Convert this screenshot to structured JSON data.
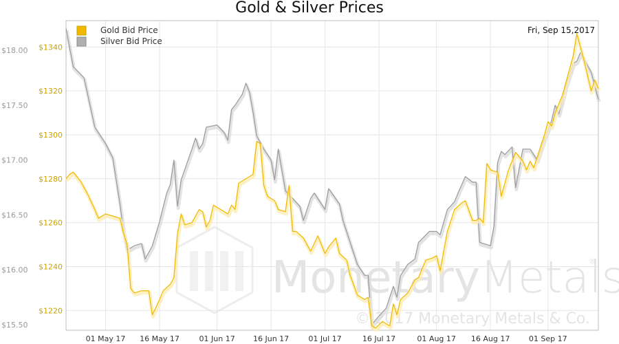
{
  "chart_data": {
    "type": "line",
    "title": "Gold & Silver Prices",
    "date_label": "Fri, Sep 15,2017",
    "watermark": {
      "brand": "MonetaryMetals",
      "brand_part1": "Monetary",
      "brand_part2": "Metals",
      "copyright": "© 2017 Monetary Metals & Co."
    },
    "legend": {
      "placement": "top-left"
    },
    "grid": true,
    "x_ticks": [
      "01 May 17",
      "16 May 17",
      "01 Jun 17",
      "16 Jun 17",
      "01 Jul 17",
      "16 Jul 17",
      "01 Aug 17",
      "16 Aug 17",
      "01 Sep 17"
    ],
    "x_range": [
      "2017-04-20",
      "2017-09-15"
    ],
    "y_left": {
      "label": "",
      "ticks": [
        "$15.50",
        "$16.00",
        "$16.50",
        "$17.00",
        "$17.50",
        "$18.00"
      ],
      "range": [
        15.45,
        18.27
      ]
    },
    "y_right": {
      "label": "",
      "ticks": [
        "$1220",
        "$1240",
        "$1260",
        "$1280",
        "$1300",
        "$1320",
        "$1340"
      ],
      "range": [
        1211,
        1352
      ]
    },
    "series": [
      {
        "name": "Gold Bid Price",
        "axis": "right",
        "color": "#f0b800",
        "points": [
          [
            "2017-04-20",
            1280
          ],
          [
            "2017-04-21",
            1282
          ],
          [
            "2017-04-22",
            1283
          ],
          [
            "2017-04-24",
            1279
          ],
          [
            "2017-04-26",
            1273
          ],
          [
            "2017-04-28",
            1266
          ],
          [
            "2017-04-29",
            1262
          ],
          [
            "2017-05-01",
            1264
          ],
          [
            "2017-05-03",
            1263
          ],
          [
            "2017-05-05",
            1262
          ],
          [
            "2017-05-06",
            1255
          ],
          [
            "2017-05-07",
            1250
          ],
          [
            "2017-05-08",
            1230
          ],
          [
            "2017-05-09",
            1228
          ],
          [
            "2017-05-11",
            1229
          ],
          [
            "2017-05-13",
            1229
          ],
          [
            "2017-05-14",
            1218
          ],
          [
            "2017-05-16",
            1225
          ],
          [
            "2017-05-17",
            1229
          ],
          [
            "2017-05-19",
            1232
          ],
          [
            "2017-05-20",
            1235
          ],
          [
            "2017-05-21",
            1255
          ],
          [
            "2017-05-22",
            1264
          ],
          [
            "2017-05-23",
            1259
          ],
          [
            "2017-05-25",
            1260
          ],
          [
            "2017-05-27",
            1266
          ],
          [
            "2017-05-28",
            1265
          ],
          [
            "2017-05-29",
            1258
          ],
          [
            "2017-05-30",
            1261
          ],
          [
            "2017-05-31",
            1268
          ],
          [
            "2017-06-02",
            1266
          ],
          [
            "2017-06-04",
            1264
          ],
          [
            "2017-06-05",
            1268
          ],
          [
            "2017-06-06",
            1266
          ],
          [
            "2017-06-07",
            1278
          ],
          [
            "2017-06-09",
            1280
          ],
          [
            "2017-06-11",
            1282
          ],
          [
            "2017-06-12",
            1297
          ],
          [
            "2017-06-13",
            1296
          ],
          [
            "2017-06-14",
            1277
          ],
          [
            "2017-06-15",
            1272
          ],
          [
            "2017-06-17",
            1270
          ],
          [
            "2017-06-18",
            1266
          ],
          [
            "2017-06-20",
            1265
          ],
          [
            "2017-06-21",
            1277
          ],
          [
            "2017-06-22",
            1256
          ],
          [
            "2017-06-23",
            1256
          ],
          [
            "2017-06-25",
            1253
          ],
          [
            "2017-06-27",
            1247
          ],
          [
            "2017-06-29",
            1254
          ],
          [
            "2017-07-01",
            1246
          ],
          [
            "2017-07-02",
            1249
          ],
          [
            "2017-07-04",
            1253
          ],
          [
            "2017-07-05",
            1246
          ],
          [
            "2017-07-07",
            1243
          ],
          [
            "2017-07-08",
            1236
          ],
          [
            "2017-07-10",
            1227
          ],
          [
            "2017-07-12",
            1225
          ],
          [
            "2017-07-13",
            1226
          ],
          [
            "2017-07-14",
            1213
          ],
          [
            "2017-07-15",
            1212
          ],
          [
            "2017-07-17",
            1215
          ],
          [
            "2017-07-19",
            1213
          ],
          [
            "2017-07-20",
            1223
          ],
          [
            "2017-07-21",
            1218
          ],
          [
            "2017-07-22",
            1225
          ],
          [
            "2017-07-24",
            1228
          ],
          [
            "2017-07-26",
            1234
          ],
          [
            "2017-07-27",
            1235
          ],
          [
            "2017-07-29",
            1243
          ],
          [
            "2017-07-31",
            1244
          ],
          [
            "2017-08-01",
            1245
          ],
          [
            "2017-08-02",
            1238
          ],
          [
            "2017-08-04",
            1256
          ],
          [
            "2017-08-06",
            1266
          ],
          [
            "2017-08-08",
            1269
          ],
          [
            "2017-08-09",
            1270
          ],
          [
            "2017-08-11",
            1261
          ],
          [
            "2017-08-12",
            1261
          ],
          [
            "2017-08-13",
            1262
          ],
          [
            "2017-08-14",
            1260
          ],
          [
            "2017-08-15",
            1287
          ],
          [
            "2017-08-16",
            1284
          ],
          [
            "2017-08-18",
            1283
          ],
          [
            "2017-08-19",
            1272
          ],
          [
            "2017-08-21",
            1284
          ],
          [
            "2017-08-23",
            1292
          ],
          [
            "2017-08-25",
            1288
          ],
          [
            "2017-08-26",
            1284
          ],
          [
            "2017-08-27",
            1288
          ],
          [
            "2017-08-28",
            1285
          ],
          [
            "2017-08-30",
            1295
          ],
          [
            "2017-08-31",
            1300
          ],
          [
            "2017-09-01",
            1306
          ],
          [
            "2017-09-02",
            1304
          ],
          [
            "2017-09-03",
            1310
          ],
          [
            "2017-09-05",
            1318
          ],
          [
            "2017-09-07",
            1330
          ],
          [
            "2017-09-08",
            1336
          ],
          [
            "2017-09-09",
            1346
          ],
          [
            "2017-09-11",
            1334
          ],
          [
            "2017-09-13",
            1320
          ],
          [
            "2017-09-14",
            1325
          ],
          [
            "2017-09-15",
            1321
          ]
        ]
      },
      {
        "name": "Silver Bid Price",
        "axis": "left",
        "color": "#9a9a9a",
        "points": [
          [
            "2017-04-20",
            18.2
          ],
          [
            "2017-04-22",
            17.85
          ],
          [
            "2017-04-25",
            17.75
          ],
          [
            "2017-04-26",
            17.6
          ],
          [
            "2017-04-28",
            17.3
          ],
          [
            "2017-05-01",
            17.15
          ],
          [
            "2017-05-03",
            17.02
          ],
          [
            "2017-05-05",
            16.6
          ],
          [
            "2017-05-06",
            16.35
          ],
          [
            "2017-05-07",
            16.18
          ],
          [
            "2017-05-09",
            16.22
          ],
          [
            "2017-05-11",
            16.24
          ],
          [
            "2017-05-12",
            16.1
          ],
          [
            "2017-05-14",
            16.22
          ],
          [
            "2017-05-16",
            16.44
          ],
          [
            "2017-05-18",
            16.7
          ],
          [
            "2017-05-19",
            16.78
          ],
          [
            "2017-05-20",
            17.0
          ],
          [
            "2017-05-21",
            16.58
          ],
          [
            "2017-05-22",
            16.82
          ],
          [
            "2017-05-25",
            17.1
          ],
          [
            "2017-05-26",
            17.2
          ],
          [
            "2017-05-27",
            17.1
          ],
          [
            "2017-05-28",
            17.15
          ],
          [
            "2017-05-29",
            17.3
          ],
          [
            "2017-06-01",
            17.32
          ],
          [
            "2017-06-03",
            17.25
          ],
          [
            "2017-06-04",
            17.18
          ],
          [
            "2017-06-05",
            17.46
          ],
          [
            "2017-06-06",
            17.5
          ],
          [
            "2017-06-08",
            17.6
          ],
          [
            "2017-06-09",
            17.7
          ],
          [
            "2017-06-10",
            17.62
          ],
          [
            "2017-06-11",
            17.44
          ],
          [
            "2017-06-12",
            17.22
          ],
          [
            "2017-06-14",
            17.1
          ],
          [
            "2017-06-15",
            17.05
          ],
          [
            "2017-06-16",
            17.0
          ],
          [
            "2017-06-17",
            16.82
          ],
          [
            "2017-06-18",
            17.1
          ],
          [
            "2017-06-20",
            16.72
          ],
          [
            "2017-06-22",
            16.65
          ],
          [
            "2017-06-24",
            16.58
          ],
          [
            "2017-06-25",
            16.45
          ],
          [
            "2017-06-27",
            16.65
          ],
          [
            "2017-06-28",
            16.7
          ],
          [
            "2017-06-30",
            16.6
          ],
          [
            "2017-07-01",
            16.55
          ],
          [
            "2017-07-02",
            16.74
          ],
          [
            "2017-07-05",
            16.6
          ],
          [
            "2017-07-06",
            16.45
          ],
          [
            "2017-07-08",
            16.25
          ],
          [
            "2017-07-10",
            16.05
          ],
          [
            "2017-07-12",
            15.95
          ],
          [
            "2017-07-13",
            15.95
          ],
          [
            "2017-07-14",
            15.5
          ],
          [
            "2017-07-16",
            15.58
          ],
          [
            "2017-07-18",
            15.65
          ],
          [
            "2017-07-20",
            15.85
          ],
          [
            "2017-07-21",
            15.75
          ],
          [
            "2017-07-22",
            15.95
          ],
          [
            "2017-07-24",
            16.05
          ],
          [
            "2017-07-26",
            16.1
          ],
          [
            "2017-07-27",
            16.25
          ],
          [
            "2017-07-30",
            16.35
          ],
          [
            "2017-08-01",
            16.35
          ],
          [
            "2017-08-02",
            16.32
          ],
          [
            "2017-08-04",
            16.55
          ],
          [
            "2017-08-06",
            16.62
          ],
          [
            "2017-08-07",
            16.7
          ],
          [
            "2017-08-09",
            16.85
          ],
          [
            "2017-08-11",
            16.8
          ],
          [
            "2017-08-12",
            16.8
          ],
          [
            "2017-08-13",
            16.25
          ],
          [
            "2017-08-16",
            16.22
          ],
          [
            "2017-08-17",
            16.4
          ],
          [
            "2017-08-18",
            16.98
          ],
          [
            "2017-08-19",
            17.08
          ],
          [
            "2017-08-20",
            17.05
          ],
          [
            "2017-08-22",
            17.12
          ],
          [
            "2017-08-23",
            16.75
          ],
          [
            "2017-08-25",
            17.1
          ],
          [
            "2017-08-27",
            17.1
          ],
          [
            "2017-08-28",
            17.05
          ],
          [
            "2017-08-29",
            17.0
          ],
          [
            "2017-08-31",
            17.2
          ],
          [
            "2017-09-02",
            17.36
          ],
          [
            "2017-09-03",
            17.5
          ],
          [
            "2017-09-04",
            17.42
          ],
          [
            "2017-09-06",
            17.68
          ],
          [
            "2017-09-08",
            17.88
          ],
          [
            "2017-09-09",
            17.9
          ],
          [
            "2017-09-10",
            17.98
          ],
          [
            "2017-09-11",
            17.92
          ],
          [
            "2017-09-13",
            17.8
          ],
          [
            "2017-09-14",
            17.68
          ],
          [
            "2017-09-15",
            17.55
          ]
        ]
      }
    ]
  }
}
